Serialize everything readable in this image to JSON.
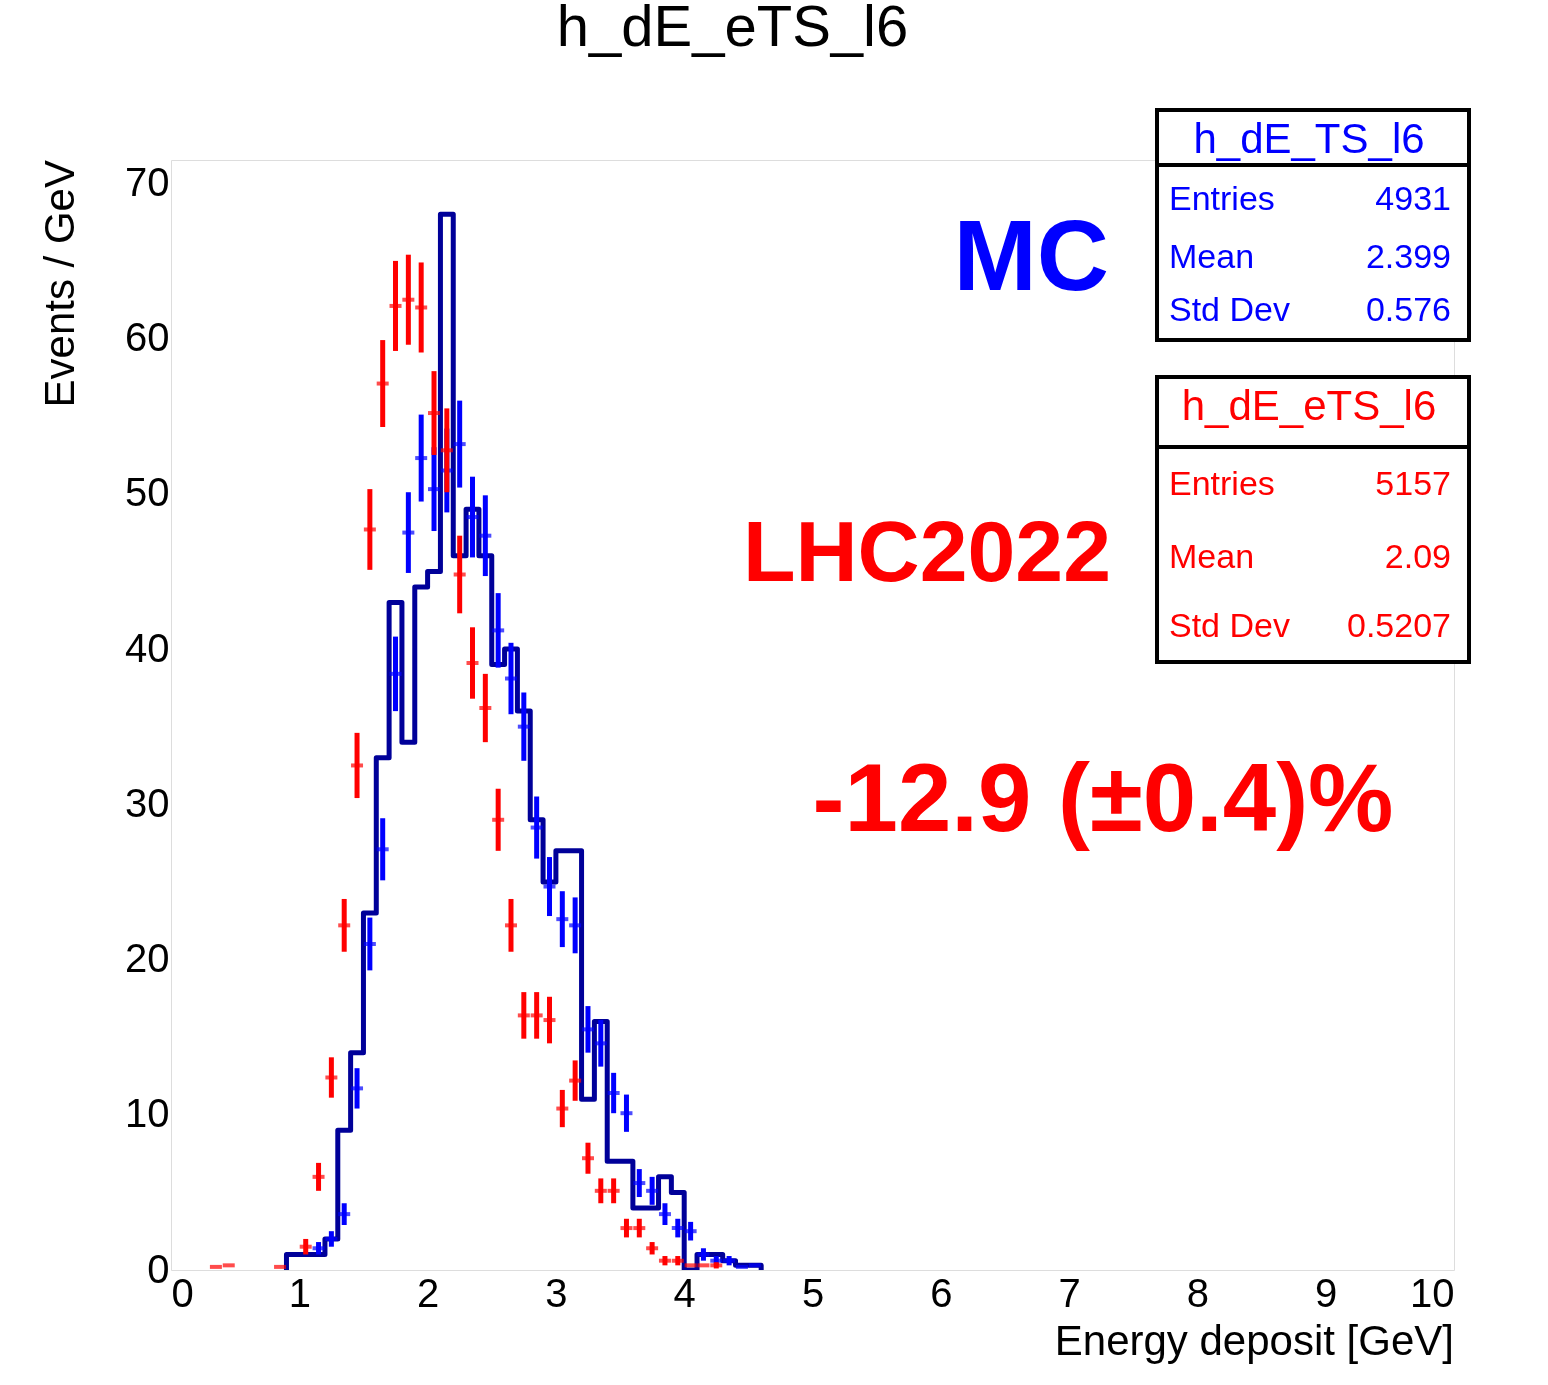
{
  "chart_data": {
    "type": "histogram",
    "title": "h_dE_eTS_l6",
    "xlabel": "Energy deposit [GeV]",
    "ylabel": "Events / GeV",
    "xlim": [
      0,
      10
    ],
    "ylim": [
      0,
      71.5
    ],
    "xticks": [
      0,
      1,
      2,
      3,
      4,
      5,
      6,
      7,
      8,
      9,
      10
    ],
    "yticks": [
      0,
      10,
      20,
      30,
      40,
      50,
      60,
      70
    ],
    "grid": false,
    "series": [
      {
        "type": "histogram",
        "color": "#000099",
        "bins": [
          0.9,
          1.0,
          1.1,
          1.2,
          1.3,
          1.4,
          1.5,
          1.6,
          1.7,
          1.8,
          1.9,
          2.0,
          2.1,
          2.2,
          2.3,
          2.4,
          2.5,
          2.6,
          2.7,
          2.8,
          2.9,
          3.0,
          3.1,
          3.2,
          3.3,
          3.4,
          3.5,
          3.6,
          3.7,
          3.8,
          3.9,
          4.0,
          4.1,
          4.2,
          4.3,
          4.4,
          4.5,
          4.6
        ],
        "values": [
          1,
          1,
          1,
          2,
          9,
          14,
          23,
          33,
          43,
          34,
          44,
          45,
          68,
          46,
          49,
          46,
          39,
          40,
          36,
          29,
          25,
          27,
          27,
          11,
          16,
          7,
          7,
          4,
          4,
          6,
          5,
          0,
          1,
          1,
          0.6,
          0.3,
          0.3
        ]
      },
      {
        "type": "scatter",
        "color": "#0000ff",
        "x": [
          1.15,
          1.25,
          1.35,
          1.45,
          1.55,
          1.65,
          1.75,
          1.85,
          1.95,
          2.05,
          2.15,
          2.25,
          2.35,
          2.45,
          2.55,
          2.65,
          2.75,
          2.85,
          2.95,
          3.05,
          3.15,
          3.25,
          3.35,
          3.45,
          3.55,
          3.65,
          3.75,
          3.85,
          3.95,
          4.05,
          4.15,
          4.25,
          4.35,
          4.45,
          4.55
        ],
        "values": [
          1.4,
          2.0,
          3.6,
          11.7,
          21.0,
          27.1,
          38.4,
          47.5,
          52.3,
          50.3,
          51.5,
          53.2,
          48.5,
          47.3,
          41.2,
          38.1,
          35.0,
          28.5,
          24.7,
          22.6,
          22.2,
          15.5,
          14.6,
          11.4,
          10.1,
          5.6,
          5.1,
          3.6,
          2.7,
          2.5,
          1.0,
          0.6,
          0.6,
          0.2,
          0.3
        ],
        "errors": [
          0.4,
          0.5,
          0.7,
          1.3,
          1.7,
          2.0,
          2.4,
          2.6,
          2.8,
          2.7,
          2.7,
          2.8,
          2.6,
          2.6,
          2.4,
          2.3,
          2.2,
          2.0,
          1.9,
          1.8,
          1.8,
          1.5,
          1.5,
          1.3,
          1.2,
          0.9,
          0.9,
          0.7,
          0.6,
          0.6,
          0.4,
          0.3,
          0.3,
          null,
          null
        ]
      },
      {
        "type": "scatter",
        "color": "#ff0000",
        "x": [
          0.35,
          0.45,
          0.85,
          1.05,
          1.15,
          1.25,
          1.35,
          1.45,
          1.55,
          1.65,
          1.75,
          1.85,
          1.95,
          2.05,
          2.15,
          2.25,
          2.35,
          2.45,
          2.55,
          2.65,
          2.75,
          2.85,
          2.95,
          3.05,
          3.15,
          3.25,
          3.35,
          3.45,
          3.55,
          3.65,
          3.75,
          3.85,
          3.95,
          4.05,
          4.15,
          4.25
        ],
        "values": [
          0.2,
          0.3,
          0.2,
          1.5,
          6.0,
          12.4,
          22.2,
          32.5,
          47.7,
          57.1,
          62.1,
          62.5,
          62.0,
          55.2,
          52.8,
          44.8,
          39.1,
          36.2,
          29.0,
          22.2,
          16.4,
          16.4,
          16.1,
          10.4,
          12.2,
          7.2,
          5.1,
          5.1,
          2.7,
          2.7,
          1.4,
          0.6,
          0.6,
          0.3,
          0.3,
          0.3
        ],
        "errors": [
          null,
          null,
          null,
          0.5,
          0.9,
          1.3,
          1.7,
          2.1,
          2.6,
          2.8,
          2.9,
          2.9,
          2.9,
          2.7,
          2.7,
          2.5,
          2.3,
          2.2,
          2.0,
          1.7,
          1.5,
          1.5,
          1.5,
          1.2,
          1.3,
          1.0,
          0.8,
          0.8,
          0.6,
          0.6,
          0.4,
          0.3,
          0.3,
          null,
          null,
          0.2
        ]
      }
    ],
    "annotations": [
      "h_dE_TS_l6",
      "Entries",
      "4931",
      "Mean",
      "2.399",
      "Std Dev",
      "0.576",
      "h_dE_eTS_l6",
      "Entries",
      "5157",
      "Mean",
      "2.09",
      "Std Dev",
      "0.5207",
      "MC",
      "LHC2022",
      "-12.9 (±0.4)%"
    ]
  }
}
